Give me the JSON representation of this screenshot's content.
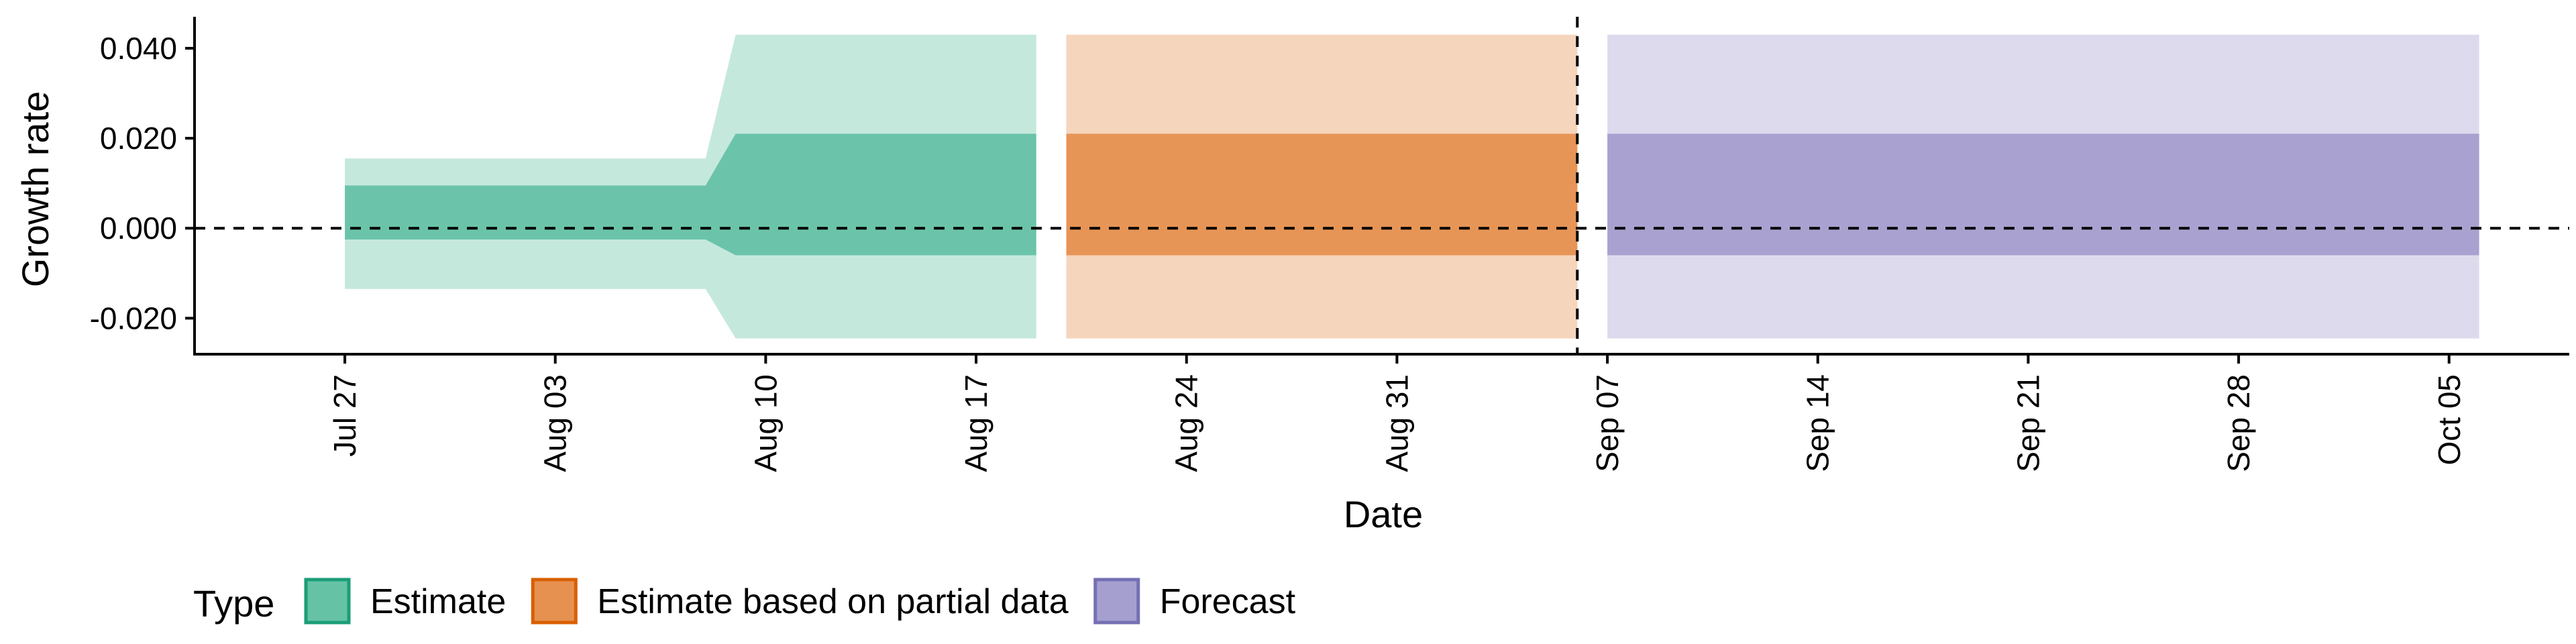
{
  "chart_data": {
    "type": "area",
    "xlabel": "Date",
    "ylabel": "Growth rate",
    "x_type": "date",
    "xlim": [
      "2021-07-22",
      "2021-10-09"
    ],
    "ylim": [
      -0.028,
      0.047
    ],
    "x_ticks": [
      {
        "date": "2021-07-27",
        "label": "Jul 27"
      },
      {
        "date": "2021-08-03",
        "label": "Aug 03"
      },
      {
        "date": "2021-08-10",
        "label": "Aug 10"
      },
      {
        "date": "2021-08-17",
        "label": "Aug 17"
      },
      {
        "date": "2021-08-24",
        "label": "Aug 24"
      },
      {
        "date": "2021-08-31",
        "label": "Aug 31"
      },
      {
        "date": "2021-09-07",
        "label": "Sep 07"
      },
      {
        "date": "2021-09-14",
        "label": "Sep 14"
      },
      {
        "date": "2021-09-21",
        "label": "Sep 21"
      },
      {
        "date": "2021-09-28",
        "label": "Sep 28"
      },
      {
        "date": "2021-10-05",
        "label": "Oct 05"
      }
    ],
    "y_ticks": [
      {
        "value": 0.04,
        "label": "0.040"
      },
      {
        "value": 0.02,
        "label": "0.020"
      },
      {
        "value": 0.0,
        "label": "0.000"
      },
      {
        "value": -0.02,
        "label": "-0.020"
      }
    ],
    "reference_lines": {
      "horizontal_y": 0.0,
      "vertical_date": "2021-09-06"
    },
    "series": [
      {
        "name": "Estimate",
        "color": "#66c2a5",
        "points": [
          {
            "date": "2021-07-27",
            "outer_lower": -0.0135,
            "inner_lower": -0.0025,
            "inner_upper": 0.0095,
            "outer_upper": 0.0155
          },
          {
            "date": "2021-08-08",
            "outer_lower": -0.0135,
            "inner_lower": -0.0025,
            "inner_upper": 0.0095,
            "outer_upper": 0.0155
          },
          {
            "date": "2021-08-09",
            "outer_lower": -0.0245,
            "inner_lower": -0.006,
            "inner_upper": 0.021,
            "outer_upper": 0.043
          },
          {
            "date": "2021-08-19",
            "outer_lower": -0.0245,
            "inner_lower": -0.006,
            "inner_upper": 0.021,
            "outer_upper": 0.043
          }
        ]
      },
      {
        "name": "Estimate based on partial data",
        "color": "#e69150",
        "points": [
          {
            "date": "2021-08-20",
            "outer_lower": -0.0245,
            "inner_lower": -0.006,
            "inner_upper": 0.021,
            "outer_upper": 0.043
          },
          {
            "date": "2021-09-06",
            "outer_lower": -0.0245,
            "inner_lower": -0.006,
            "inner_upper": 0.021,
            "outer_upper": 0.043
          }
        ]
      },
      {
        "name": "Forecast",
        "color": "#a59fcf",
        "points": [
          {
            "date": "2021-09-07",
            "outer_lower": -0.0245,
            "inner_lower": -0.006,
            "inner_upper": 0.021,
            "outer_upper": 0.043
          },
          {
            "date": "2021-10-06",
            "outer_lower": -0.0245,
            "inner_lower": -0.006,
            "inner_upper": 0.021,
            "outer_upper": 0.043
          }
        ]
      }
    ],
    "legend": {
      "title": "Type",
      "position": "bottom-left",
      "entries": [
        {
          "label": "Estimate",
          "fill": "#66c2a5",
          "border": "#1b9e77"
        },
        {
          "label": "Estimate based on partial data",
          "fill": "#e69150",
          "border": "#d95f02"
        },
        {
          "label": "Forecast",
          "fill": "#a59fcf",
          "border": "#7570b3"
        }
      ]
    }
  }
}
